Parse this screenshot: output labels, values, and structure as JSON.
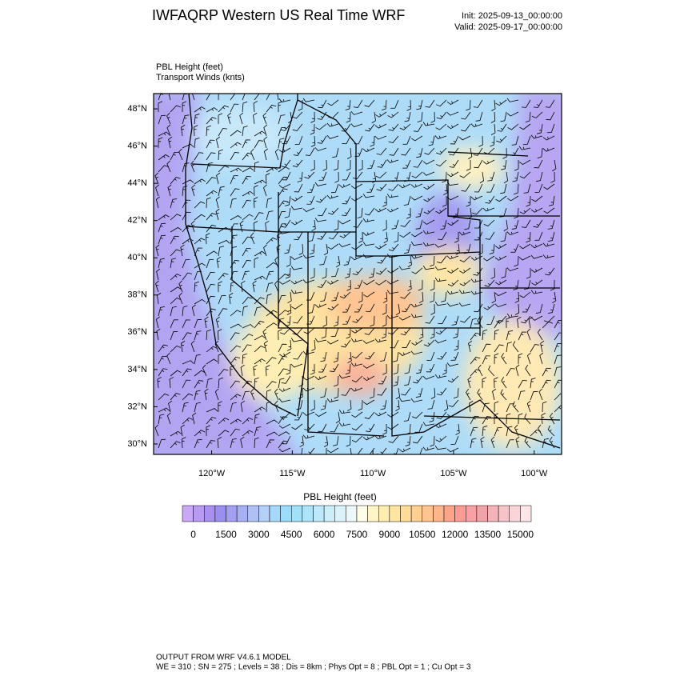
{
  "title": "IWFAQRP Western US Real Time WRF",
  "init": "Init: 2025-09-13_00:00:00",
  "valid": "Valid: 2025-09-17_00:00:00",
  "field_label_1": "PBL Height   (feet)",
  "field_label_2": "Transport Winds   (knts)",
  "map": {
    "xlim": [
      -123.6,
      -98.3
    ],
    "ylim": [
      29.44,
      48.82
    ],
    "xticks": [
      {
        "value": -120,
        "label": "120°W"
      },
      {
        "value": -115,
        "label": "115°W"
      },
      {
        "value": -110,
        "label": "110°W"
      },
      {
        "value": -105,
        "label": "105°W"
      },
      {
        "value": -100,
        "label": "100°W"
      }
    ],
    "yticks": [
      {
        "value": 30,
        "label": "30°N"
      },
      {
        "value": 32,
        "label": "32°N"
      },
      {
        "value": 34,
        "label": "34°N"
      },
      {
        "value": 36,
        "label": "36°N"
      },
      {
        "value": 38,
        "label": "38°N"
      },
      {
        "value": 40,
        "label": "40°N"
      },
      {
        "value": 42,
        "label": "42°N"
      },
      {
        "value": 44,
        "label": "44°N"
      },
      {
        "value": 46,
        "label": "46°N"
      },
      {
        "value": 48,
        "label": "48°N"
      }
    ]
  },
  "colorbar": {
    "title": "PBL Height  (feet)",
    "range": [
      -500,
      15500
    ],
    "ticks": [
      0,
      1500,
      3000,
      4500,
      6000,
      7500,
      9000,
      10500,
      12000,
      13500,
      15000
    ],
    "colors": [
      "#c9a8f5",
      "#b89af0",
      "#a890ee",
      "#9a8ef0",
      "#a3a0f2",
      "#a8b0f4",
      "#aec0f6",
      "#b4d0f8",
      "#a6d8fa",
      "#9cdcfb",
      "#a2e0fa",
      "#aee4fa",
      "#bce8fa",
      "#cceefa",
      "#dcf2fb",
      "#ecf8fc",
      "#fffde8",
      "#fff5c8",
      "#ffeeb0",
      "#ffe6a0",
      "#ffdc98",
      "#ffd092",
      "#ffc490",
      "#ffb48c",
      "#ffa48a",
      "#fc9a94",
      "#f8a0a4",
      "#f0a4aa",
      "#f2b4b8",
      "#f6c4c8",
      "#fad4d8",
      "#fde6ea"
    ]
  },
  "footer_1": "OUTPUT FROM WRF V4.6.1 MODEL",
  "footer_2": "WE = 310 ; SN = 275 ; Levels = 38 ; Dis = 8km ; Phys Opt = 8 ; PBL Opt = 1 ; Cu Opt = 3"
}
